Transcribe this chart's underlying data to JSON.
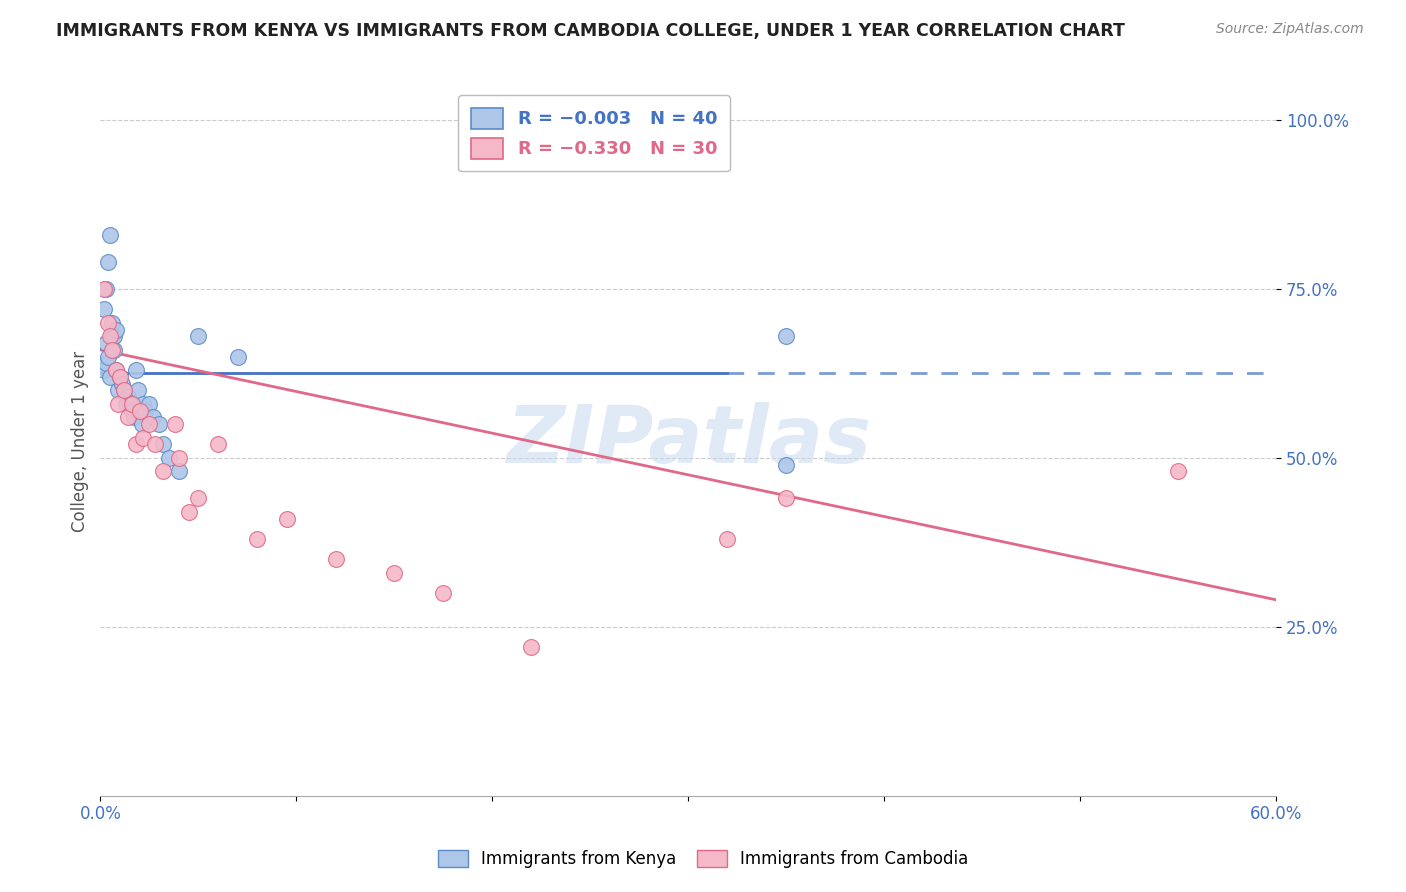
{
  "title": "IMMIGRANTS FROM KENYA VS IMMIGRANTS FROM CAMBODIA COLLEGE, UNDER 1 YEAR CORRELATION CHART",
  "source": "Source: ZipAtlas.com",
  "ylabel": "College, Under 1 year",
  "xlim": [
    0.0,
    0.6
  ],
  "ylim": [
    0.0,
    1.05
  ],
  "yticks": [
    0.25,
    0.5,
    0.75,
    1.0
  ],
  "ytick_labels": [
    "25.0%",
    "50.0%",
    "75.0%",
    "100.0%"
  ],
  "xticks": [
    0.0,
    0.1,
    0.2,
    0.3,
    0.4,
    0.5,
    0.6
  ],
  "xtick_labels": [
    "0.0%",
    "",
    "",
    "",
    "",
    "",
    "60.0%"
  ],
  "kenya_color": "#aec6e8",
  "kenya_edge_color": "#5b8cc8",
  "kenya_line_color": "#4472c4",
  "cambodia_color": "#f4b8c8",
  "cambodia_edge_color": "#e06888",
  "cambodia_line_color": "#e06888",
  "background_color": "#ffffff",
  "watermark": "ZIPatlas",
  "kenya_R": -0.003,
  "kenya_N": 40,
  "cambodia_R": -0.33,
  "cambodia_N": 30,
  "kenya_line_x0": 0.0,
  "kenya_line_x_switch": 0.32,
  "kenya_line_x1": 0.6,
  "kenya_line_y": 0.625,
  "cambodia_line_x0": 0.0,
  "cambodia_line_x1": 0.6,
  "cambodia_line_y0": 0.66,
  "cambodia_line_y1": 0.29,
  "kenya_scatter_x": [
    0.002,
    0.003,
    0.003,
    0.004,
    0.005,
    0.006,
    0.007,
    0.008,
    0.009,
    0.01,
    0.011,
    0.012,
    0.013,
    0.014,
    0.015,
    0.016,
    0.017,
    0.018,
    0.019,
    0.02,
    0.021,
    0.022,
    0.023,
    0.025,
    0.027,
    0.03,
    0.032,
    0.035,
    0.04,
    0.05,
    0.002,
    0.003,
    0.004,
    0.005,
    0.006,
    0.007,
    0.008,
    0.07,
    0.35,
    0.35
  ],
  "kenya_scatter_y": [
    0.63,
    0.64,
    0.67,
    0.65,
    0.62,
    0.68,
    0.66,
    0.63,
    0.6,
    0.62,
    0.61,
    0.6,
    0.58,
    0.59,
    0.58,
    0.57,
    0.56,
    0.63,
    0.6,
    0.57,
    0.55,
    0.58,
    0.57,
    0.58,
    0.56,
    0.55,
    0.52,
    0.5,
    0.48,
    0.68,
    0.72,
    0.75,
    0.79,
    0.83,
    0.7,
    0.68,
    0.69,
    0.65,
    0.68,
    0.49
  ],
  "cambodia_scatter_x": [
    0.002,
    0.004,
    0.005,
    0.006,
    0.008,
    0.009,
    0.01,
    0.012,
    0.014,
    0.016,
    0.018,
    0.02,
    0.022,
    0.025,
    0.028,
    0.032,
    0.038,
    0.04,
    0.045,
    0.05,
    0.06,
    0.08,
    0.095,
    0.12,
    0.15,
    0.175,
    0.22,
    0.32,
    0.35,
    0.55
  ],
  "cambodia_scatter_y": [
    0.75,
    0.7,
    0.68,
    0.66,
    0.63,
    0.58,
    0.62,
    0.6,
    0.56,
    0.58,
    0.52,
    0.57,
    0.53,
    0.55,
    0.52,
    0.48,
    0.55,
    0.5,
    0.42,
    0.44,
    0.52,
    0.38,
    0.41,
    0.35,
    0.33,
    0.3,
    0.22,
    0.38,
    0.44,
    0.48
  ]
}
